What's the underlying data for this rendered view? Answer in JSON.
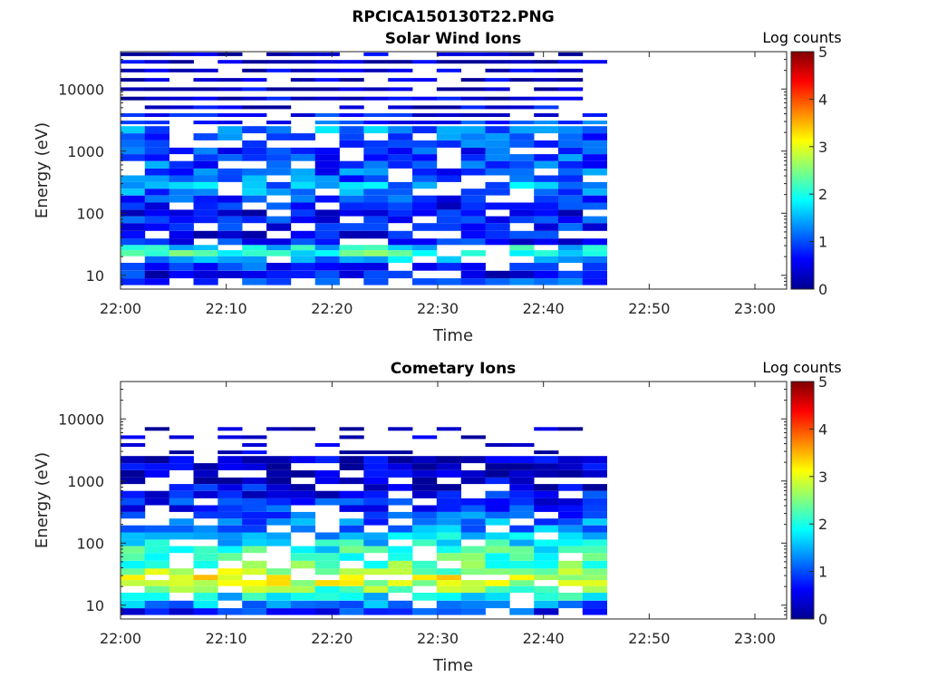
{
  "figure_title": "RPCICA150130T22.PNG",
  "chart_data": [
    {
      "type": "heatmap",
      "title": "Solar Wind Ions",
      "xlabel": "Time",
      "ylabel": "Energy (eV)",
      "x_ticks": [
        "22:00",
        "22:10",
        "22:20",
        "22:30",
        "22:40",
        "22:50",
        "23:00"
      ],
      "x_range": [
        "22:00",
        "23:03"
      ],
      "y_scale": "log",
      "y_ticks": [
        "10",
        "100",
        "1000",
        "10000"
      ],
      "y_range": [
        6,
        40000
      ],
      "data_time_range": [
        "22:00",
        "22:46"
      ],
      "colorbar": {
        "label": "Log counts",
        "ticks": [
          "0",
          "1",
          "2",
          "3",
          "4",
          "5"
        ],
        "range": [
          0,
          5
        ],
        "colormap": "jet"
      },
      "profile": [
        {
          "e": 8,
          "v": 1.0
        },
        {
          "e": 10,
          "v": 0.6
        },
        {
          "e": 14,
          "v": 0.8
        },
        {
          "e": 18,
          "v": 1.4
        },
        {
          "e": 23,
          "v": 2.1
        },
        {
          "e": 28,
          "v": 1.8
        },
        {
          "e": 34,
          "v": 0.7
        },
        {
          "e": 45,
          "v": 0.6
        },
        {
          "e": 60,
          "v": 0.7
        },
        {
          "e": 80,
          "v": 0.8
        },
        {
          "e": 100,
          "v": 0.6
        },
        {
          "e": 130,
          "v": 0.7
        },
        {
          "e": 170,
          "v": 0.8
        },
        {
          "e": 220,
          "v": 1.2
        },
        {
          "e": 280,
          "v": 1.4
        },
        {
          "e": 360,
          "v": 1.1
        },
        {
          "e": 460,
          "v": 1.0
        },
        {
          "e": 600,
          "v": 1.0
        },
        {
          "e": 800,
          "v": 1.0
        },
        {
          "e": 1000,
          "v": 0.8
        },
        {
          "e": 1300,
          "v": 0.9
        },
        {
          "e": 1700,
          "v": 1.1
        },
        {
          "e": 2200,
          "v": 1.3
        },
        {
          "e": 2900,
          "v": 0.9
        },
        {
          "e": 3800,
          "v": 0.7
        },
        {
          "e": 5000,
          "v": 0.5
        },
        {
          "e": 7000,
          "v": 0.4
        },
        {
          "e": 10000,
          "v": 0.3
        },
        {
          "e": 14000,
          "v": 0.3
        },
        {
          "e": 20000,
          "v": 0.3
        },
        {
          "e": 28000,
          "v": 0.3
        },
        {
          "e": 36000,
          "v": 0.3
        }
      ]
    },
    {
      "type": "heatmap",
      "title": "Cometary Ions",
      "xlabel": "Time",
      "ylabel": "Energy (eV)",
      "x_ticks": [
        "22:00",
        "22:10",
        "22:20",
        "22:30",
        "22:40",
        "22:50",
        "23:00"
      ],
      "x_range": [
        "22:00",
        "23:03"
      ],
      "y_scale": "log",
      "y_ticks": [
        "10",
        "100",
        "1000",
        "10000"
      ],
      "y_range": [
        6,
        40000
      ],
      "data_time_range": [
        "22:00",
        "22:46"
      ],
      "colorbar": {
        "label": "Log counts",
        "ticks": [
          "0",
          "1",
          "2",
          "3",
          "4",
          "5"
        ],
        "range": [
          0,
          5
        ],
        "colormap": "jet"
      },
      "profile": [
        {
          "e": 8,
          "v": 0.8
        },
        {
          "e": 10,
          "v": 1.3
        },
        {
          "e": 14,
          "v": 1.8
        },
        {
          "e": 18,
          "v": 2.4
        },
        {
          "e": 23,
          "v": 2.9
        },
        {
          "e": 28,
          "v": 3.0
        },
        {
          "e": 34,
          "v": 2.6
        },
        {
          "e": 45,
          "v": 2.3
        },
        {
          "e": 60,
          "v": 2.2
        },
        {
          "e": 80,
          "v": 2.0
        },
        {
          "e": 100,
          "v": 1.8
        },
        {
          "e": 130,
          "v": 1.6
        },
        {
          "e": 170,
          "v": 1.4
        },
        {
          "e": 220,
          "v": 1.2
        },
        {
          "e": 280,
          "v": 1.0
        },
        {
          "e": 360,
          "v": 0.8
        },
        {
          "e": 460,
          "v": 0.7
        },
        {
          "e": 600,
          "v": 0.6
        },
        {
          "e": 800,
          "v": 0.5
        },
        {
          "e": 1000,
          "v": 0.4
        },
        {
          "e": 1300,
          "v": 0.3
        },
        {
          "e": 1700,
          "v": 0.3
        },
        {
          "e": 2200,
          "v": 0.3
        },
        {
          "e": 2900,
          "v": 0.2
        },
        {
          "e": 3800,
          "v": 0.2
        },
        {
          "e": 5000,
          "v": 0.2
        },
        {
          "e": 7000,
          "v": 0.2
        }
      ]
    }
  ]
}
